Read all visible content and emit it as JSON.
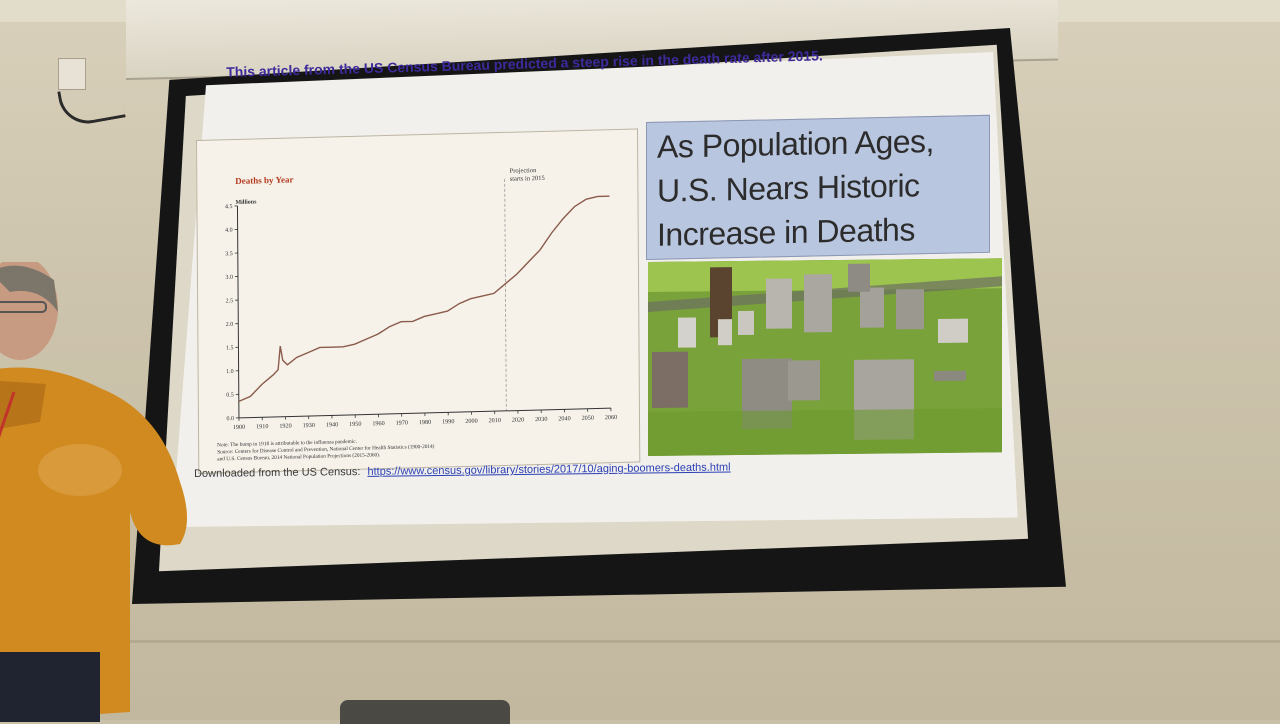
{
  "slide": {
    "heading": "This article from the US Census Bureau predicted a steep rise in the death rate after 2015.",
    "headline_lines": [
      "As Population Ages,",
      "U.S. Nears Historic",
      "Increase in Deaths"
    ],
    "credit_prefix": "Downloaded from the US Census:",
    "credit_link": "https://www.census.gov/library/stories/2017/10/aging-boomers-deaths.html"
  },
  "chart_data": {
    "type": "line",
    "title": "Deaths by Year",
    "ylabel": "Millions",
    "annotation": "Projection starts in 2015",
    "annotation_x": 2015,
    "x_ticks": [
      1900,
      1910,
      1920,
      1930,
      1940,
      1950,
      1960,
      1970,
      1980,
      1990,
      2000,
      2010,
      2020,
      2030,
      2040,
      2050,
      2060
    ],
    "y_ticks": [
      "0.0",
      "0.5",
      "1.0",
      "1.5",
      "2.0",
      "2.5",
      "3.0",
      "3.5",
      "4.0",
      "4.5"
    ],
    "ylim": [
      0,
      4.5
    ],
    "xlim": [
      1900,
      2060
    ],
    "series": [
      {
        "x": [
          1900,
          1905,
          1910,
          1915,
          1917,
          1918,
          1919,
          1921,
          1925,
          1930,
          1935,
          1940,
          1945,
          1950,
          1955,
          1960,
          1965,
          1970,
          1975,
          1980,
          1985,
          1990,
          1995,
          2000,
          2005,
          2010,
          2015,
          2020,
          2025,
          2030,
          2035,
          2040,
          2045,
          2050,
          2055,
          2060
        ],
        "values": [
          0.35,
          0.45,
          0.7,
          0.9,
          1.0,
          1.5,
          1.2,
          1.1,
          1.25,
          1.35,
          1.45,
          1.45,
          1.45,
          1.5,
          1.6,
          1.7,
          1.85,
          1.95,
          1.95,
          2.05,
          2.1,
          2.15,
          2.3,
          2.4,
          2.45,
          2.5,
          2.7,
          2.9,
          3.15,
          3.4,
          3.75,
          4.05,
          4.3,
          4.45,
          4.5,
          4.5
        ]
      }
    ],
    "notes": [
      "Note: The bump in 1918 is attributable to the influenza pandemic.",
      "Source: Centers for Disease Control and Prevention, National Center for Health Statistics (1900-2014)",
      "and U.S. Census Bureau, 2014 National Population Projections (2015-2060)."
    ],
    "grid": false
  },
  "colors": {
    "heading": "#3d2a9c",
    "chart_title": "#b23a1e",
    "chart_line": "#8a5a4a",
    "headline_bg": "#b9c6df",
    "link": "#2a3fb5"
  }
}
